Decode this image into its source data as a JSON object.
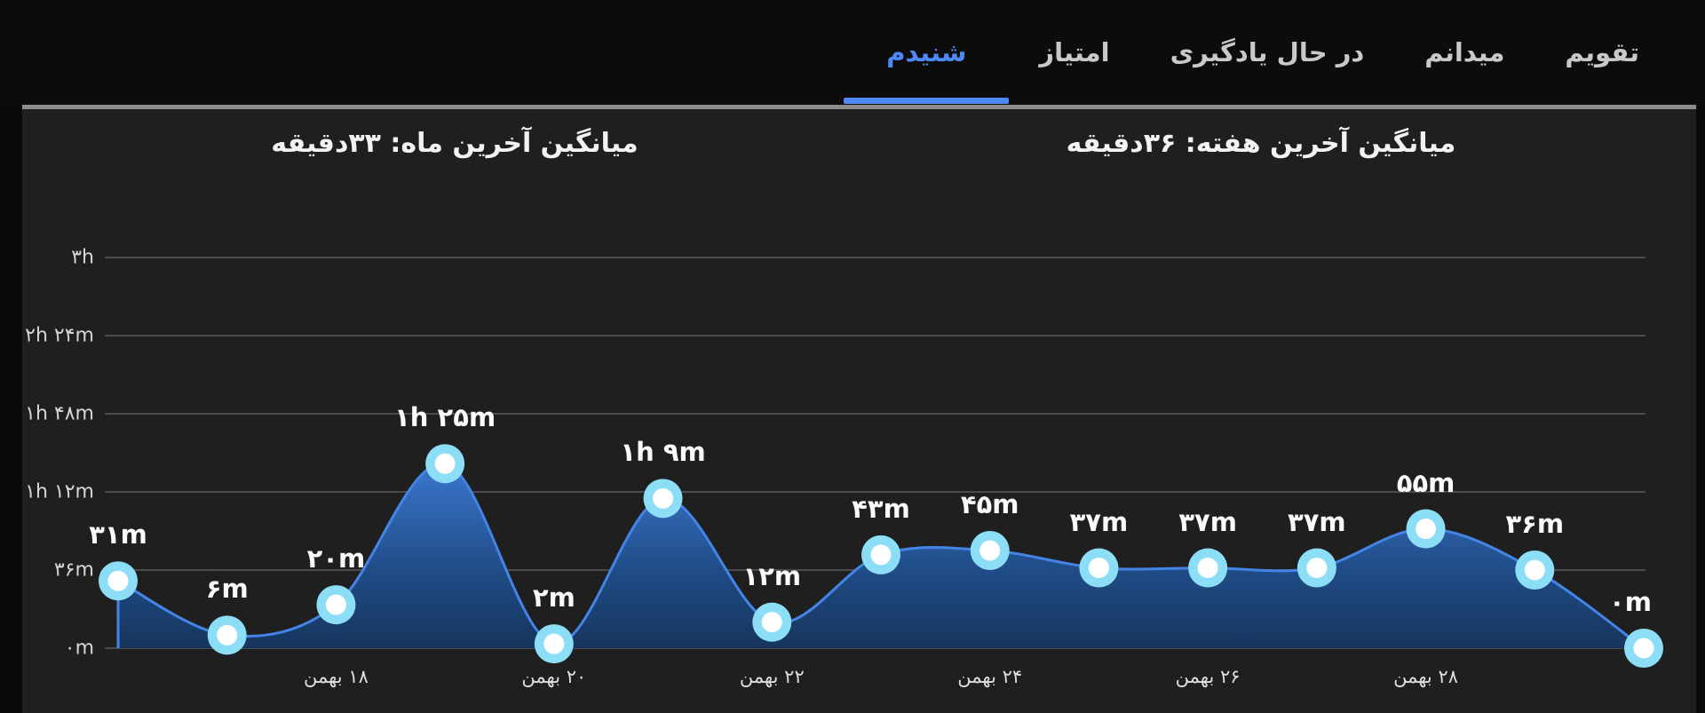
{
  "nav": {
    "tabs": [
      {
        "label": "تقویم",
        "active": false
      },
      {
        "label": "میدانم",
        "active": false
      },
      {
        "label": "در حال یادگیری",
        "active": false
      },
      {
        "label": "امتیاز",
        "active": false
      },
      {
        "label": "شنیدم",
        "active": true
      }
    ]
  },
  "summary": {
    "month_avg_label": "میانگین آخرین ماه: ۳۳دقیقه",
    "week_avg_label": "میانگین آخرین هفته: ۳۶دقیقه"
  },
  "chart_data": {
    "type": "area",
    "title": "",
    "xlabel": "",
    "ylabel": "",
    "series": [
      {
        "name": "daily-listening-minutes",
        "values": [
          31,
          6,
          20,
          85,
          2,
          69,
          12,
          43,
          45,
          37,
          37,
          37,
          55,
          36,
          0
        ]
      }
    ],
    "point_labels": [
      "۳۱m",
      "۶m",
      "۲۰m",
      "۱h ۲۵m",
      "۲m",
      "۱h ۹m",
      "۱۲m",
      "۴۳m",
      "۴۵m",
      "۳۷m",
      "۳۷m",
      "۳۷m",
      "۵۵m",
      "۳۶m",
      "۰m"
    ],
    "x_tick_labels": [
      "۱۸ بهمن",
      "۲۰ بهمن",
      "۲۲ بهمن",
      "۲۴ بهمن",
      "۲۶ بهمن",
      "۲۸ بهمن"
    ],
    "x_tick_indices": [
      2,
      4,
      6,
      8,
      10,
      12
    ],
    "y_tick_labels": [
      "۰m",
      "۳۶m",
      "۱h ۱۲m",
      "۱h ۴۸m",
      "۲h ۲۴m",
      "۳h"
    ],
    "y_tick_minutes": [
      0,
      36,
      72,
      108,
      144,
      180
    ],
    "ylim": [
      0,
      180
    ],
    "grid": true,
    "legend": "none",
    "colors": {
      "accent": "#4d89f4",
      "grid": "#5a5a5a",
      "line": "#4384e6",
      "area_top": "#3f7dd9",
      "area_mid": "#1f4b85",
      "area_bottom": "#16345c",
      "marker_ring": "#8cdef6",
      "marker_core": "#ffffff"
    }
  }
}
